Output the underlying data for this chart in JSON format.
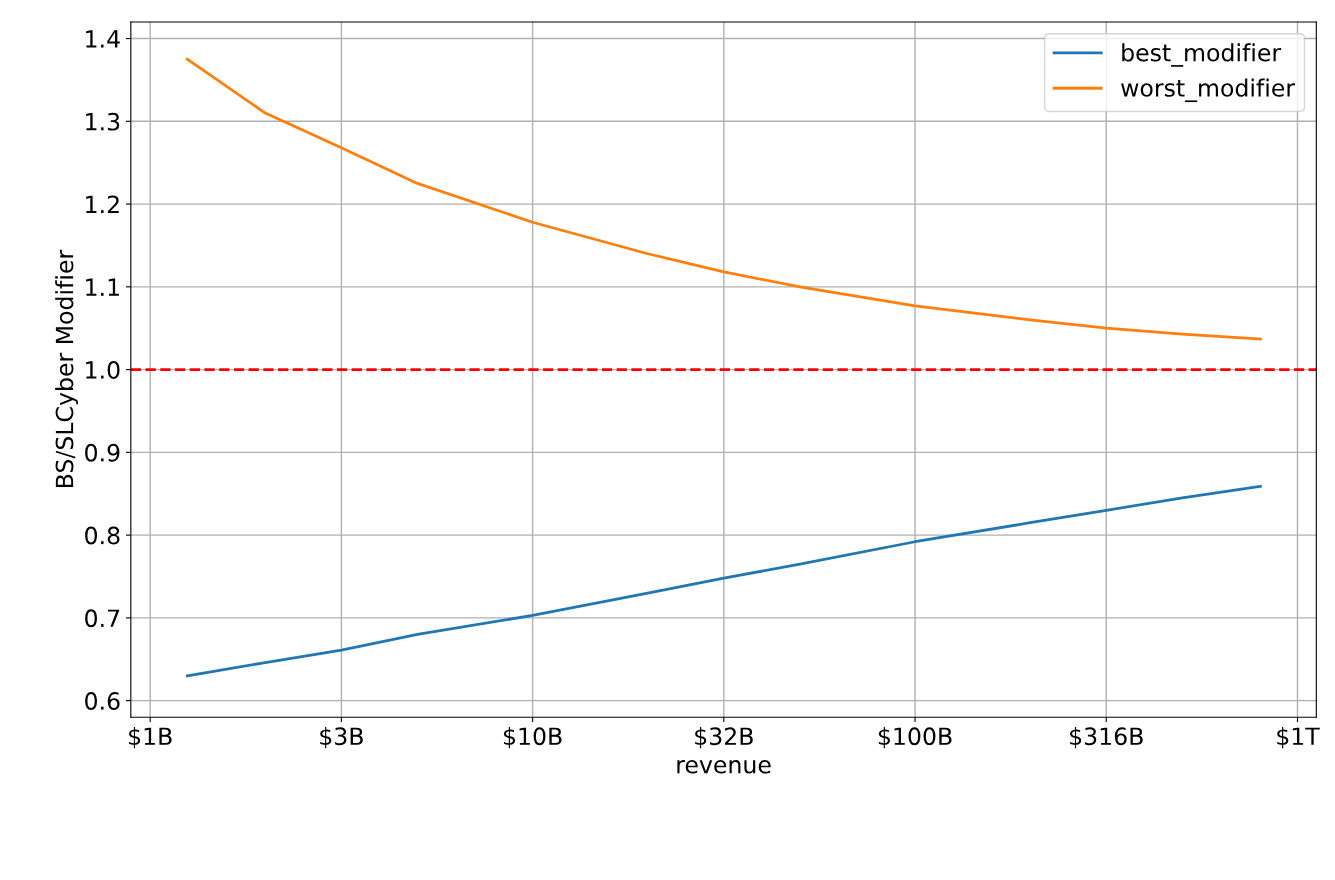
{
  "chart_data": {
    "type": "line",
    "xlabel": "revenue",
    "ylabel": "BS/SLCyber Modifier",
    "log": "x",
    "x": [
      1250000000.0,
      2000000000.0,
      3162000000.0,
      5000000000.0,
      10000000000.0,
      20000000000.0,
      31620000000.0,
      50000000000.0,
      100000000000.0,
      200000000000.0,
      316200000000.0,
      500000000000.0,
      800000000000.0
    ],
    "series": [
      {
        "name": "best_modifier",
        "color": "#1f77b4",
        "values": [
          0.63,
          0.646,
          0.661,
          0.68,
          0.703,
          0.73,
          0.748,
          0.765,
          0.792,
          0.815,
          0.83,
          0.845,
          0.859
        ]
      },
      {
        "name": "worst_modifier",
        "color": "#ff7f0e",
        "values": [
          1.375,
          1.31,
          1.268,
          1.225,
          1.178,
          1.14,
          1.118,
          1.1,
          1.077,
          1.06,
          1.05,
          1.043,
          1.037
        ]
      }
    ],
    "xlim": [
      890000000.0,
      1120000000000.0
    ],
    "ylim": [
      0.58,
      1.42
    ],
    "xticks": [
      {
        "value": 1000000000.0,
        "label": "$1B"
      },
      {
        "value": 3162000000.0,
        "label": "$3B"
      },
      {
        "value": 10000000000.0,
        "label": "$10B"
      },
      {
        "value": 31620000000.0,
        "label": "$32B"
      },
      {
        "value": 100000000000.0,
        "label": "$100B"
      },
      {
        "value": 316200000000.0,
        "label": "$316B"
      },
      {
        "value": 1000000000000.0,
        "label": "$1T"
      }
    ],
    "yticks": [
      0.6,
      0.7,
      0.8,
      0.9,
      {
        "value": 1.0,
        "label": "1.0"
      },
      1.1,
      1.2,
      1.3,
      1.4
    ],
    "ref_lines": [
      {
        "axis": "y",
        "value": 1.0,
        "color": "#ff0000",
        "line_style": "dashed"
      }
    ],
    "grid": true,
    "legend": "top right",
    "line_style": "solid",
    "marker": "none"
  }
}
